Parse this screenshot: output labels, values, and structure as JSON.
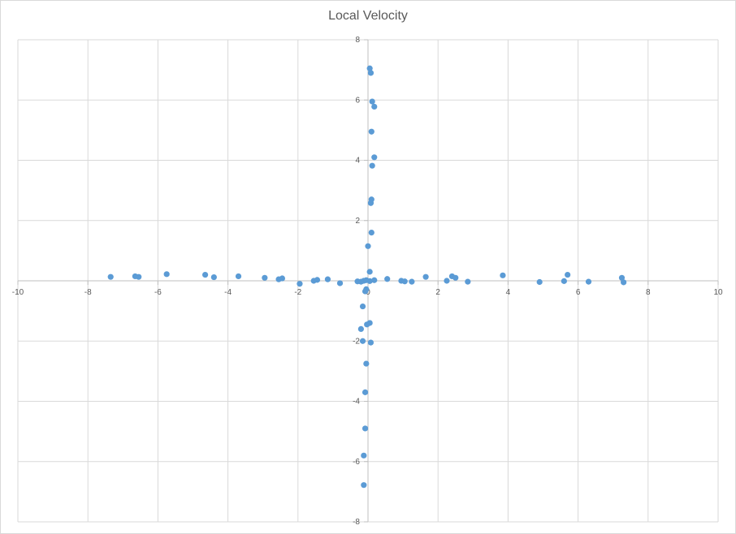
{
  "chart_data": {
    "type": "scatter",
    "title": "Local Velocity",
    "xlabel": "",
    "ylabel": "",
    "xlim": [
      -10,
      10
    ],
    "ylim": [
      -8,
      8
    ],
    "x_ticks": [
      -10,
      -8,
      -6,
      -4,
      -2,
      0,
      2,
      4,
      6,
      8,
      10
    ],
    "y_ticks": [
      -8,
      -6,
      -4,
      -2,
      0,
      2,
      4,
      6,
      8
    ],
    "grid": true,
    "legend": "none",
    "colors": {
      "marker": "#5b9bd5",
      "grid": "#d9d9d9",
      "axis": "#bfbfbf",
      "text": "#595959"
    },
    "series": [
      {
        "points": [
          [
            -7.35,
            0.13
          ],
          [
            -6.65,
            0.15
          ],
          [
            -6.55,
            0.13
          ],
          [
            -5.75,
            0.22
          ],
          [
            -4.65,
            0.2
          ],
          [
            -4.4,
            0.12
          ],
          [
            -3.7,
            0.15
          ],
          [
            -2.95,
            0.1
          ],
          [
            -2.55,
            0.05
          ],
          [
            -2.45,
            0.08
          ],
          [
            -1.95,
            -0.1
          ],
          [
            -1.55,
            0.0
          ],
          [
            -1.45,
            0.03
          ],
          [
            -1.15,
            0.05
          ],
          [
            -0.8,
            -0.08
          ],
          [
            -0.3,
            -0.02
          ],
          [
            -0.2,
            -0.03
          ],
          [
            -0.12,
            0.0
          ],
          [
            -0.05,
            0.02
          ],
          [
            0.05,
            -0.01
          ],
          [
            0.18,
            0.02
          ],
          [
            0.55,
            0.06
          ],
          [
            0.95,
            0.0
          ],
          [
            1.05,
            -0.02
          ],
          [
            1.25,
            -0.03
          ],
          [
            1.65,
            0.13
          ],
          [
            2.25,
            0.0
          ],
          [
            2.4,
            0.15
          ],
          [
            2.5,
            0.1
          ],
          [
            2.85,
            -0.03
          ],
          [
            3.85,
            0.18
          ],
          [
            4.9,
            -0.04
          ],
          [
            5.6,
            -0.01
          ],
          [
            5.7,
            0.2
          ],
          [
            6.3,
            -0.03
          ],
          [
            7.25,
            0.1
          ],
          [
            7.3,
            -0.05
          ],
          [
            0.05,
            7.05
          ],
          [
            0.08,
            6.9
          ],
          [
            0.12,
            5.95
          ],
          [
            0.18,
            5.78
          ],
          [
            0.1,
            4.95
          ],
          [
            0.18,
            4.1
          ],
          [
            0.12,
            3.82
          ],
          [
            0.1,
            2.7
          ],
          [
            0.08,
            2.58
          ],
          [
            0.1,
            1.6
          ],
          [
            0.0,
            1.15
          ],
          [
            0.05,
            0.3
          ],
          [
            -0.05,
            -0.28
          ],
          [
            -0.08,
            -0.35
          ],
          [
            -0.15,
            -0.85
          ],
          [
            -0.03,
            -1.45
          ],
          [
            0.05,
            -1.4
          ],
          [
            -0.2,
            -1.6
          ],
          [
            -0.15,
            -2.0
          ],
          [
            0.08,
            -2.05
          ],
          [
            -0.05,
            -2.75
          ],
          [
            -0.08,
            -3.7
          ],
          [
            -0.08,
            -4.9
          ],
          [
            -0.12,
            -5.8
          ],
          [
            -0.12,
            -6.78
          ]
        ]
      }
    ]
  }
}
